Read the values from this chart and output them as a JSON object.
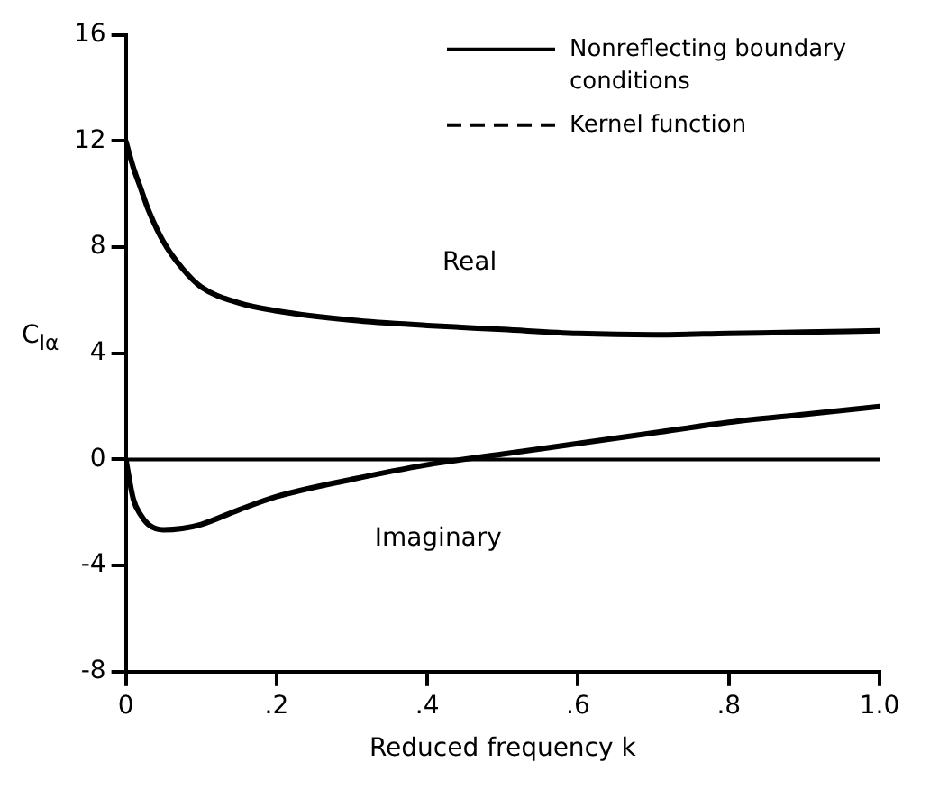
{
  "chart_data": {
    "type": "line",
    "xlabel": "Reduced frequency k",
    "ylabel": "C$_{lα}$",
    "x": [
      0,
      0.01,
      0.02,
      0.03,
      0.05,
      0.075,
      0.1,
      0.15,
      0.2,
      0.3,
      0.4,
      0.5,
      0.6,
      0.7,
      0.8,
      0.9,
      1.0
    ],
    "series": [
      {
        "name": "Nonreflecting boundary conditions",
        "color": "#000000",
        "line_style": "solid",
        "values": [
          12,
          11.0,
          10.2,
          9.4,
          8.2,
          7.2,
          6.5,
          5.9,
          5.6,
          5.25,
          5.05,
          4.9,
          4.75,
          4.7,
          4.75,
          4.8,
          4.85
        ]
      },
      {
        "color": "#000000",
        "line_style": "solid",
        "values": [
          0,
          -1.5,
          -2.1,
          -2.45,
          -2.65,
          -2.6,
          -2.45,
          -1.9,
          -1.4,
          -0.75,
          -0.2,
          0.2,
          0.6,
          1.0,
          1.4,
          1.7,
          2.0
        ]
      },
      {
        "name": "Kernel function",
        "color": "#000000",
        "line_style": "dashed",
        "values": [
          null,
          null,
          null,
          null,
          null,
          null,
          null,
          null,
          null,
          null,
          null,
          null,
          null,
          null,
          null,
          null,
          null
        ]
      }
    ],
    "xlim": [
      0,
      1.0
    ],
    "xticks": [
      {
        "value": 0,
        "label": "0"
      },
      {
        "value": 0.2,
        "label": ".2"
      },
      {
        "value": 0.4,
        "label": ".4"
      },
      {
        "value": 0.6,
        "label": ".6"
      },
      {
        "value": 0.8,
        "label": ".8"
      },
      {
        "value": 1.0,
        "label": "1.0"
      }
    ],
    "ylim": [
      -8,
      16
    ],
    "yticks": [
      -8,
      -4,
      0,
      4,
      8,
      12,
      16
    ],
    "ref_lines": [
      {
        "axis": "y",
        "value": 0,
        "color": "#000000"
      }
    ],
    "annotations": [
      "Real",
      "Imaginary"
    ],
    "legend": "top right",
    "grid": false,
    "marker": "none"
  }
}
